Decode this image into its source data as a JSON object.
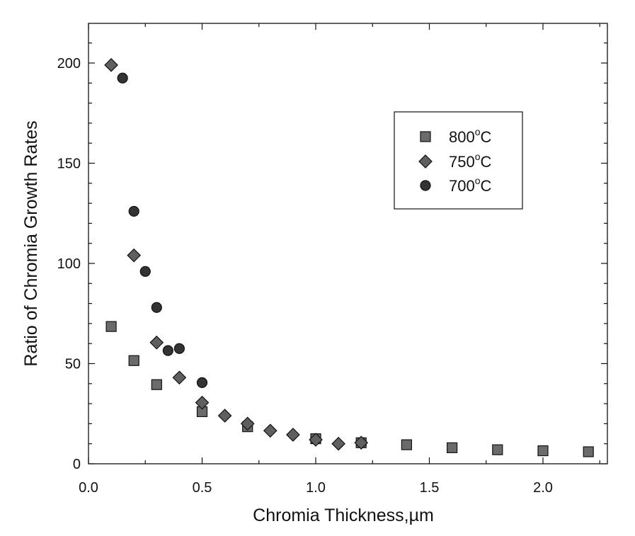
{
  "chart_data": {
    "type": "scatter",
    "xlabel": "Chromia Thickness,µm",
    "ylabel": "Ratio of Chromia Growth Rates",
    "xlim": [
      0.0,
      2.3
    ],
    "ylim": [
      0,
      220
    ],
    "x_ticks": [
      "0.0",
      "0.5",
      "1.0",
      "1.5",
      "2.0"
    ],
    "x_tick_values": [
      0.0,
      0.5,
      1.0,
      1.5,
      2.0
    ],
    "y_ticks": [
      "0",
      "50",
      "100",
      "150",
      "200"
    ],
    "y_tick_values": [
      0,
      50,
      100,
      150,
      200
    ],
    "grid": false,
    "legend_position": "top-right",
    "series": [
      {
        "name": "800°C",
        "label_main": "800",
        "label_sup": "o",
        "label_unit": "C",
        "marker": "square",
        "color": "#6b6b6b",
        "x": [
          0.1,
          0.2,
          0.3,
          0.5,
          0.7,
          1.0,
          1.2,
          1.4,
          1.6,
          1.8,
          2.0,
          2.2
        ],
        "y": [
          68.5,
          51.5,
          39.5,
          26,
          18.5,
          12.5,
          10.5,
          9.5,
          8,
          7,
          6.5,
          6
        ]
      },
      {
        "name": "750°C",
        "label_main": "750",
        "label_sup": "o",
        "label_unit": "C",
        "marker": "diamond",
        "color": "#5f5f5f",
        "x": [
          0.1,
          0.2,
          0.3,
          0.4,
          0.5,
          0.6,
          0.7,
          0.8,
          0.9,
          1.0,
          1.1,
          1.2
        ],
        "y": [
          199,
          104,
          60.5,
          43,
          30.5,
          24,
          20,
          16.5,
          14.5,
          12,
          10,
          10.5
        ]
      },
      {
        "name": "700°C",
        "label_main": "700",
        "label_sup": "o",
        "label_unit": "C",
        "marker": "circle",
        "color": "#333333",
        "x": [
          0.15,
          0.2,
          0.25,
          0.3,
          0.35,
          0.4,
          0.5
        ],
        "y": [
          192.5,
          126,
          96,
          78,
          56.5,
          57.5,
          40.5
        ]
      }
    ]
  }
}
